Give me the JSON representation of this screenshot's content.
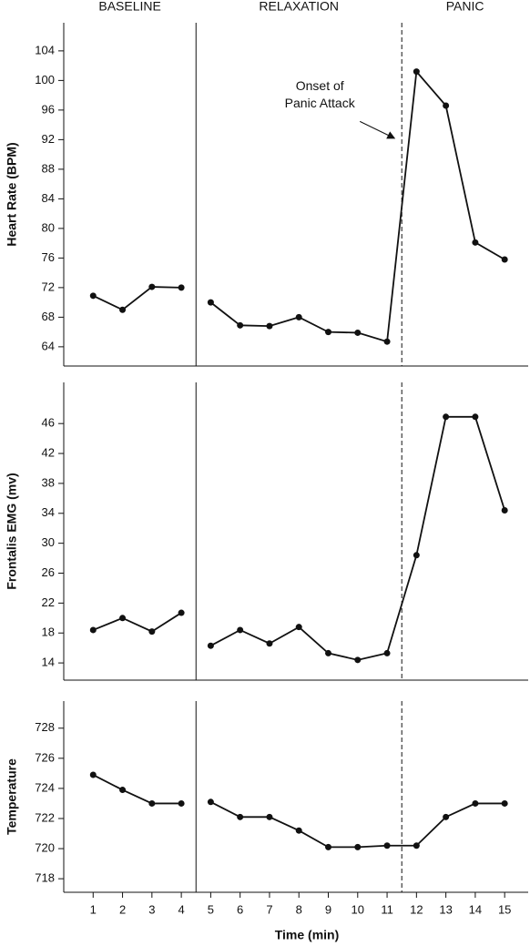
{
  "chart_data": [
    {
      "type": "line",
      "ylabel": "Heart Rate (BPM)",
      "phases": [
        {
          "label": "BASELINE",
          "end": 4.5,
          "divider": "solid"
        },
        {
          "label": "RELAXATION",
          "end": 11.5,
          "divider": "dashed"
        },
        {
          "label": "PANIC"
        }
      ],
      "annotation": {
        "lines": [
          "Onset of",
          "Panic Attack"
        ],
        "x": 11.5,
        "y": 92
      },
      "x": [
        1,
        2,
        3,
        4,
        5,
        6,
        7,
        8,
        9,
        10,
        11,
        12,
        13,
        14,
        15
      ],
      "xlim": [
        0,
        15.8
      ],
      "ylim": [
        61.4,
        107.8
      ],
      "yticks": [
        64,
        68,
        72,
        76,
        80,
        84,
        88,
        92,
        96,
        100,
        104
      ],
      "series": [
        {
          "color": "#111111",
          "values": [
            70.9,
            69,
            72.1,
            72,
            70,
            66.9,
            66.8,
            68,
            66,
            65.9,
            64.7,
            101.2,
            96.6,
            78.1,
            75.8
          ]
        }
      ]
    },
    {
      "type": "line",
      "ylabel": "Frontalis EMG (mv)",
      "x": [
        1,
        2,
        3,
        4,
        5,
        6,
        7,
        8,
        9,
        10,
        11,
        12,
        13,
        14,
        15
      ],
      "xlim": [
        0,
        15.8
      ],
      "ylim": [
        11.7,
        51.5
      ],
      "yticks": [
        14,
        18,
        22,
        26,
        30,
        34,
        38,
        42,
        46
      ],
      "series": [
        {
          "color": "#111111",
          "values": [
            18.4,
            20,
            18.2,
            20.7,
            16.3,
            18.4,
            16.6,
            18.8,
            15.3,
            14.4,
            15.3,
            28.4,
            46.9,
            46.9,
            34.4
          ]
        }
      ]
    },
    {
      "type": "line",
      "ylabel": "Temperature",
      "xlabel": "Time (min)",
      "x": [
        1,
        2,
        3,
        4,
        5,
        6,
        7,
        8,
        9,
        10,
        11,
        12,
        13,
        14,
        15
      ],
      "xlim": [
        0,
        15.8
      ],
      "xticks": [
        1,
        2,
        3,
        4,
        5,
        6,
        7,
        8,
        9,
        10,
        11,
        12,
        13,
        14,
        15
      ],
      "ylim": [
        717.1,
        729.8
      ],
      "yticks": [
        718,
        720,
        722,
        724,
        726,
        728
      ],
      "series": [
        {
          "color": "#111111",
          "values": [
            724.9,
            723.9,
            723,
            723,
            723.1,
            722.1,
            722.1,
            721.2,
            720.1,
            720.1,
            720.2,
            720.2,
            722.1,
            723,
            723
          ]
        }
      ]
    }
  ]
}
